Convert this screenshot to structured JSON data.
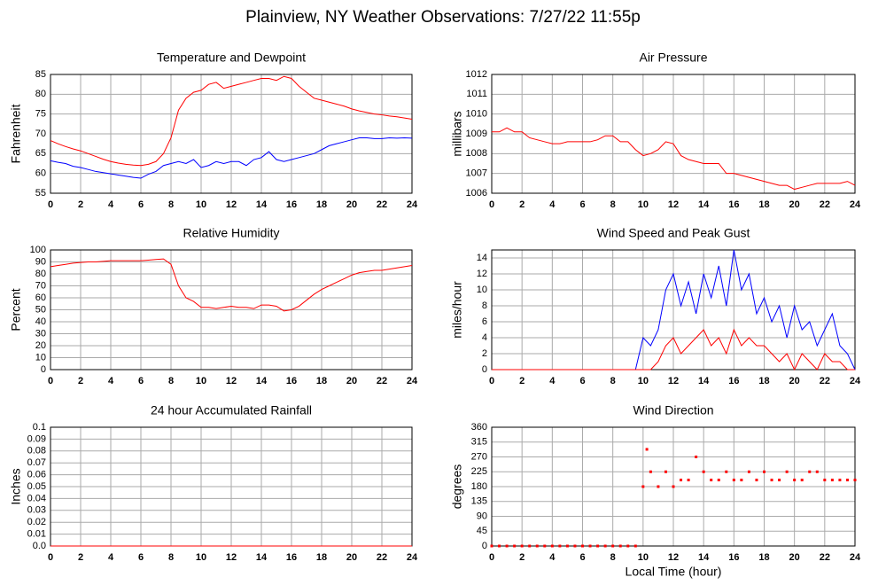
{
  "title": "Plainview, NY Weather Observations: 7/27/22 11:55p",
  "chart_data": [
    {
      "type": "line",
      "title": "Temperature and Dewpoint",
      "ylabel": "Fahrenheit",
      "xlim": [
        0,
        24
      ],
      "xticks": [
        0,
        2,
        4,
        6,
        8,
        10,
        12,
        14,
        16,
        18,
        20,
        22,
        24
      ],
      "ylim": [
        55,
        85
      ],
      "yticks": [
        55,
        60,
        65,
        70,
        75,
        80,
        85
      ],
      "grid": true,
      "x": [
        0,
        0.5,
        1,
        1.5,
        2,
        2.5,
        3,
        3.5,
        4,
        4.5,
        5,
        5.5,
        6,
        6.5,
        7,
        7.5,
        8,
        8.5,
        9,
        9.5,
        10,
        10.5,
        11,
        11.5,
        12,
        12.5,
        13,
        13.5,
        14,
        14.5,
        15,
        15.5,
        16,
        16.5,
        17,
        17.5,
        18,
        18.5,
        19,
        19.5,
        20,
        20.5,
        21,
        21.5,
        22,
        22.5,
        23,
        23.5,
        24
      ],
      "series": [
        {
          "color": "#ff0000",
          "values": [
            68.3,
            67.5,
            66.8,
            66.2,
            65.7,
            65,
            64.3,
            63.6,
            63,
            62.6,
            62.3,
            62.1,
            62,
            62.3,
            63,
            65,
            69,
            76,
            79,
            80.5,
            81,
            82.5,
            83,
            81.5,
            82,
            82.5,
            83,
            83.5,
            84,
            84,
            83.5,
            84.5,
            84,
            82,
            80.5,
            79,
            78.5,
            78,
            77.5,
            77,
            76.3,
            75.8,
            75.4,
            75,
            74.8,
            74.5,
            74.3,
            74,
            73.7
          ]
        },
        {
          "color": "#0000ff",
          "values": [
            63.2,
            62.8,
            62.5,
            61.8,
            61.5,
            61,
            60.5,
            60.2,
            59.9,
            59.6,
            59.3,
            59,
            58.8,
            59.8,
            60.5,
            62,
            62.5,
            63,
            62.5,
            63.5,
            61.5,
            62,
            63,
            62.5,
            63,
            63,
            62,
            63.5,
            64,
            65.5,
            63.5,
            63,
            63.5,
            64,
            64.5,
            65,
            66,
            67,
            67.5,
            68,
            68.5,
            69,
            69,
            68.8,
            68.8,
            69,
            68.9,
            69,
            68.9
          ]
        }
      ]
    },
    {
      "type": "line",
      "title": "Air Pressure",
      "ylabel": "millibars",
      "xlim": [
        0,
        24
      ],
      "xticks": [
        0,
        2,
        4,
        6,
        8,
        10,
        12,
        14,
        16,
        18,
        20,
        22,
        24
      ],
      "ylim": [
        1006,
        1012
      ],
      "yticks": [
        1006,
        1007,
        1008,
        1009,
        1010,
        1011,
        1012
      ],
      "grid": true,
      "x": [
        0,
        0.5,
        1,
        1.5,
        2,
        2.5,
        3,
        3.5,
        4,
        4.5,
        5,
        5.5,
        6,
        6.5,
        7,
        7.5,
        8,
        8.5,
        9,
        9.5,
        10,
        10.5,
        11,
        11.5,
        12,
        12.5,
        13,
        13.5,
        14,
        14.5,
        15,
        15.5,
        16,
        16.5,
        17,
        17.5,
        18,
        18.5,
        19,
        19.5,
        20,
        20.5,
        21,
        21.5,
        22,
        22.5,
        23,
        23.5,
        24
      ],
      "series": [
        {
          "color": "#ff0000",
          "values": [
            1009.1,
            1009.1,
            1009.3,
            1009.1,
            1009.1,
            1008.8,
            1008.7,
            1008.6,
            1008.5,
            1008.5,
            1008.6,
            1008.6,
            1008.6,
            1008.6,
            1008.7,
            1008.9,
            1008.9,
            1008.6,
            1008.6,
            1008.2,
            1007.9,
            1008,
            1008.2,
            1008.6,
            1008.5,
            1007.9,
            1007.7,
            1007.6,
            1007.5,
            1007.5,
            1007.5,
            1007,
            1007,
            1006.9,
            1006.8,
            1006.7,
            1006.6,
            1006.5,
            1006.4,
            1006.4,
            1006.2,
            1006.3,
            1006.4,
            1006.5,
            1006.5,
            1006.5,
            1006.5,
            1006.6,
            1006.4
          ]
        }
      ]
    },
    {
      "type": "line",
      "title": "Relative Humidity",
      "ylabel": "Percent",
      "xlim": [
        0,
        24
      ],
      "xticks": [
        0,
        2,
        4,
        6,
        8,
        10,
        12,
        14,
        16,
        18,
        20,
        22,
        24
      ],
      "ylim": [
        0,
        100
      ],
      "yticks": [
        0,
        10,
        20,
        30,
        40,
        50,
        60,
        70,
        80,
        90,
        100
      ],
      "grid": true,
      "x": [
        0,
        0.5,
        1,
        1.5,
        2,
        2.5,
        3,
        3.5,
        4,
        4.5,
        5,
        5.5,
        6,
        6.5,
        7,
        7.5,
        8,
        8.5,
        9,
        9.5,
        10,
        10.5,
        11,
        11.5,
        12,
        12.5,
        13,
        13.5,
        14,
        14.5,
        15,
        15.5,
        16,
        16.5,
        17,
        17.5,
        18,
        18.5,
        19,
        19.5,
        20,
        20.5,
        21,
        21.5,
        22,
        22.5,
        23,
        23.5,
        24
      ],
      "series": [
        {
          "color": "#ff0000",
          "values": [
            86,
            87,
            88,
            89,
            89.5,
            90,
            90,
            90.5,
            91,
            91,
            91,
            91,
            91,
            91.5,
            92,
            92.5,
            88,
            70,
            60,
            57,
            52,
            52,
            51,
            52,
            53,
            52,
            52,
            51,
            54,
            54,
            53,
            49,
            50,
            53,
            58,
            63,
            67,
            70,
            73,
            76,
            79,
            81,
            82,
            83,
            83,
            84,
            85,
            86,
            87
          ]
        }
      ]
    },
    {
      "type": "line",
      "title": "Wind Speed and Peak Gust",
      "ylabel": "miles/hour",
      "xlim": [
        0,
        24
      ],
      "xticks": [
        0,
        2,
        4,
        6,
        8,
        10,
        12,
        14,
        16,
        18,
        20,
        22,
        24
      ],
      "ylim": [
        0,
        15
      ],
      "yticks": [
        0,
        2,
        4,
        6,
        8,
        10,
        12,
        14
      ],
      "grid": true,
      "x": [
        0,
        0.5,
        1,
        1.5,
        2,
        2.5,
        3,
        3.5,
        4,
        4.5,
        5,
        5.5,
        6,
        6.5,
        7,
        7.5,
        8,
        8.5,
        9,
        9.5,
        10,
        10.5,
        11,
        11.5,
        12,
        12.5,
        13,
        13.5,
        14,
        14.5,
        15,
        15.5,
        16,
        16.5,
        17,
        17.5,
        18,
        18.5,
        19,
        19.5,
        20,
        20.5,
        21,
        21.5,
        22,
        22.5,
        23,
        23.5,
        24
      ],
      "series": [
        {
          "color": "#0000ff",
          "values": [
            0,
            0,
            0,
            0,
            0,
            0,
            0,
            0,
            0,
            0,
            0,
            0,
            0,
            0,
            0,
            0,
            0,
            0,
            0,
            0,
            4,
            3,
            5,
            10,
            12,
            8,
            11,
            7,
            12,
            9,
            13,
            8,
            15,
            10,
            12,
            7,
            9,
            6,
            8,
            4,
            8,
            5,
            6,
            3,
            5,
            7,
            3,
            2,
            0
          ]
        },
        {
          "color": "#ff0000",
          "values": [
            0,
            0,
            0,
            0,
            0,
            0,
            0,
            0,
            0,
            0,
            0,
            0,
            0,
            0,
            0,
            0,
            0,
            0,
            0,
            0,
            0,
            0,
            1,
            3,
            4,
            2,
            3,
            4,
            5,
            3,
            4,
            2,
            5,
            3,
            4,
            3,
            3,
            2,
            1,
            2,
            0,
            2,
            1,
            0,
            2,
            1,
            1,
            0,
            0
          ]
        }
      ]
    },
    {
      "type": "line",
      "title": "24 hour Accumulated Rainfall",
      "ylabel": "Inches",
      "xlim": [
        0,
        24
      ],
      "xticks": [
        0,
        2,
        4,
        6,
        8,
        10,
        12,
        14,
        16,
        18,
        20,
        22,
        24
      ],
      "ylim": [
        0,
        0.1
      ],
      "yticks": [
        {
          "value": 0,
          "label": "0.0"
        },
        0.01,
        0.02,
        0.03,
        0.04,
        0.05,
        0.06,
        0.07,
        0.08,
        0.09,
        0.1
      ],
      "grid": true,
      "x": [
        0,
        24
      ],
      "series": [
        {
          "color": "#ff0000",
          "values": [
            0,
            0
          ]
        }
      ]
    },
    {
      "type": "scatter",
      "title": "Wind Direction",
      "ylabel": "degrees",
      "xlabel": "Local Time (hour)",
      "xlim": [
        0,
        24
      ],
      "xticks": [
        0,
        2,
        4,
        6,
        8,
        10,
        12,
        14,
        16,
        18,
        20,
        22,
        24
      ],
      "ylim": [
        0,
        360
      ],
      "yticks": [
        0,
        45,
        90,
        135,
        180,
        225,
        270,
        315,
        360
      ],
      "grid": true,
      "x": [
        0,
        0.5,
        1,
        1.5,
        2,
        2.5,
        3,
        3.5,
        4,
        4.5,
        5,
        5.5,
        6,
        6.5,
        7,
        7.5,
        8,
        8.5,
        9,
        9.5,
        10,
        10.25,
        10.5,
        11,
        11.5,
        12,
        12.5,
        13,
        13.5,
        14,
        14.5,
        15,
        15.5,
        16,
        16.5,
        17,
        17.5,
        18,
        18.5,
        19,
        19.5,
        20,
        20.5,
        21,
        21.5,
        22,
        22.5,
        23,
        23.5,
        24
      ],
      "series": [
        {
          "color": "#ff0000",
          "values": [
            0,
            0,
            0,
            0,
            0,
            0,
            0,
            0,
            0,
            0,
            0,
            0,
            0,
            0,
            0,
            0,
            0,
            0,
            0,
            0,
            180,
            293,
            225,
            180,
            225,
            180,
            200,
            200,
            270,
            225,
            200,
            200,
            225,
            200,
            200,
            225,
            200,
            225,
            200,
            200,
            225,
            200,
            200,
            225,
            225,
            200,
            200,
            200,
            200,
            200
          ]
        }
      ]
    }
  ]
}
